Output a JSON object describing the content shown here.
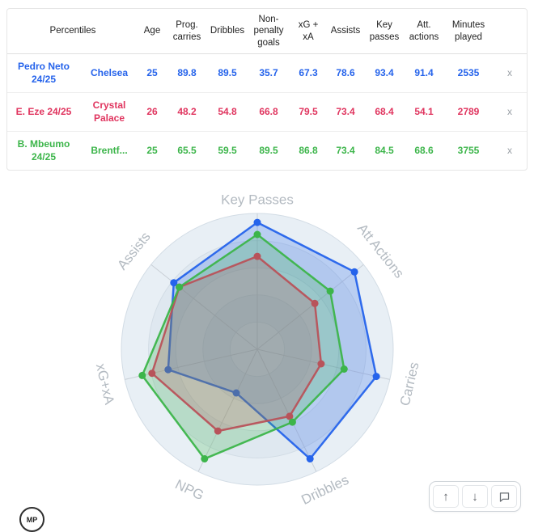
{
  "table": {
    "header_title": "Percentiles",
    "columns": [
      "Age",
      "Prog. carries",
      "Dribbles",
      "Non-penalty goals",
      "xG + xA",
      "Assists",
      "Key passes",
      "Att. actions",
      "Minutes played"
    ],
    "rows": [
      {
        "player": "Pedro Neto 24/25",
        "team": "Chelsea",
        "color": "#2563eb",
        "values": [
          "25",
          "89.8",
          "89.5",
          "35.7",
          "67.3",
          "78.6",
          "93.4",
          "91.4",
          "2535"
        ],
        "remove": "x"
      },
      {
        "player": "E. Eze 24/25",
        "team": "Crystal Palace",
        "color": "#e0355f",
        "values": [
          "26",
          "48.2",
          "54.8",
          "66.8",
          "79.5",
          "73.4",
          "68.4",
          "54.1",
          "2789"
        ],
        "remove": "x"
      },
      {
        "player": "B. Mbeumo 24/25",
        "team": "Brentf...",
        "color": "#3cb54a",
        "values": [
          "25",
          "65.5",
          "59.5",
          "89.5",
          "86.8",
          "73.4",
          "84.5",
          "68.6",
          "3755"
        ],
        "remove": "x"
      }
    ]
  },
  "chart_data": {
    "type": "radar",
    "axes": [
      "Key Passes",
      "Att Actions",
      "Carries",
      "Dribbles",
      "NPG",
      "xG+xA",
      "Assists"
    ],
    "scale": [
      0,
      100
    ],
    "rings": 5,
    "ring_fills": [
      "#dfe8f0",
      "#e8eff5"
    ],
    "ring_stroke": "#d2dce5",
    "spoke_color": "#c9cfd6",
    "label_color": "#b3bac1",
    "series": [
      {
        "name": "Pedro Neto 24/25",
        "color": "#2563eb",
        "values": [
          93.4,
          91.4,
          89.8,
          89.5,
          35.7,
          67.3,
          78.6
        ]
      },
      {
        "name": "E. Eze 24/25",
        "color": "#e0355f",
        "values": [
          68.4,
          54.1,
          48.2,
          54.8,
          66.8,
          79.5,
          73.4
        ]
      },
      {
        "name": "B. Mbeumo 24/25",
        "color": "#3cb54a",
        "values": [
          84.5,
          68.6,
          65.5,
          59.5,
          89.5,
          86.8,
          73.4
        ]
      }
    ]
  },
  "toolbar": {
    "up_glyph": "↑",
    "down_glyph": "↓"
  },
  "logo_text": "MP"
}
